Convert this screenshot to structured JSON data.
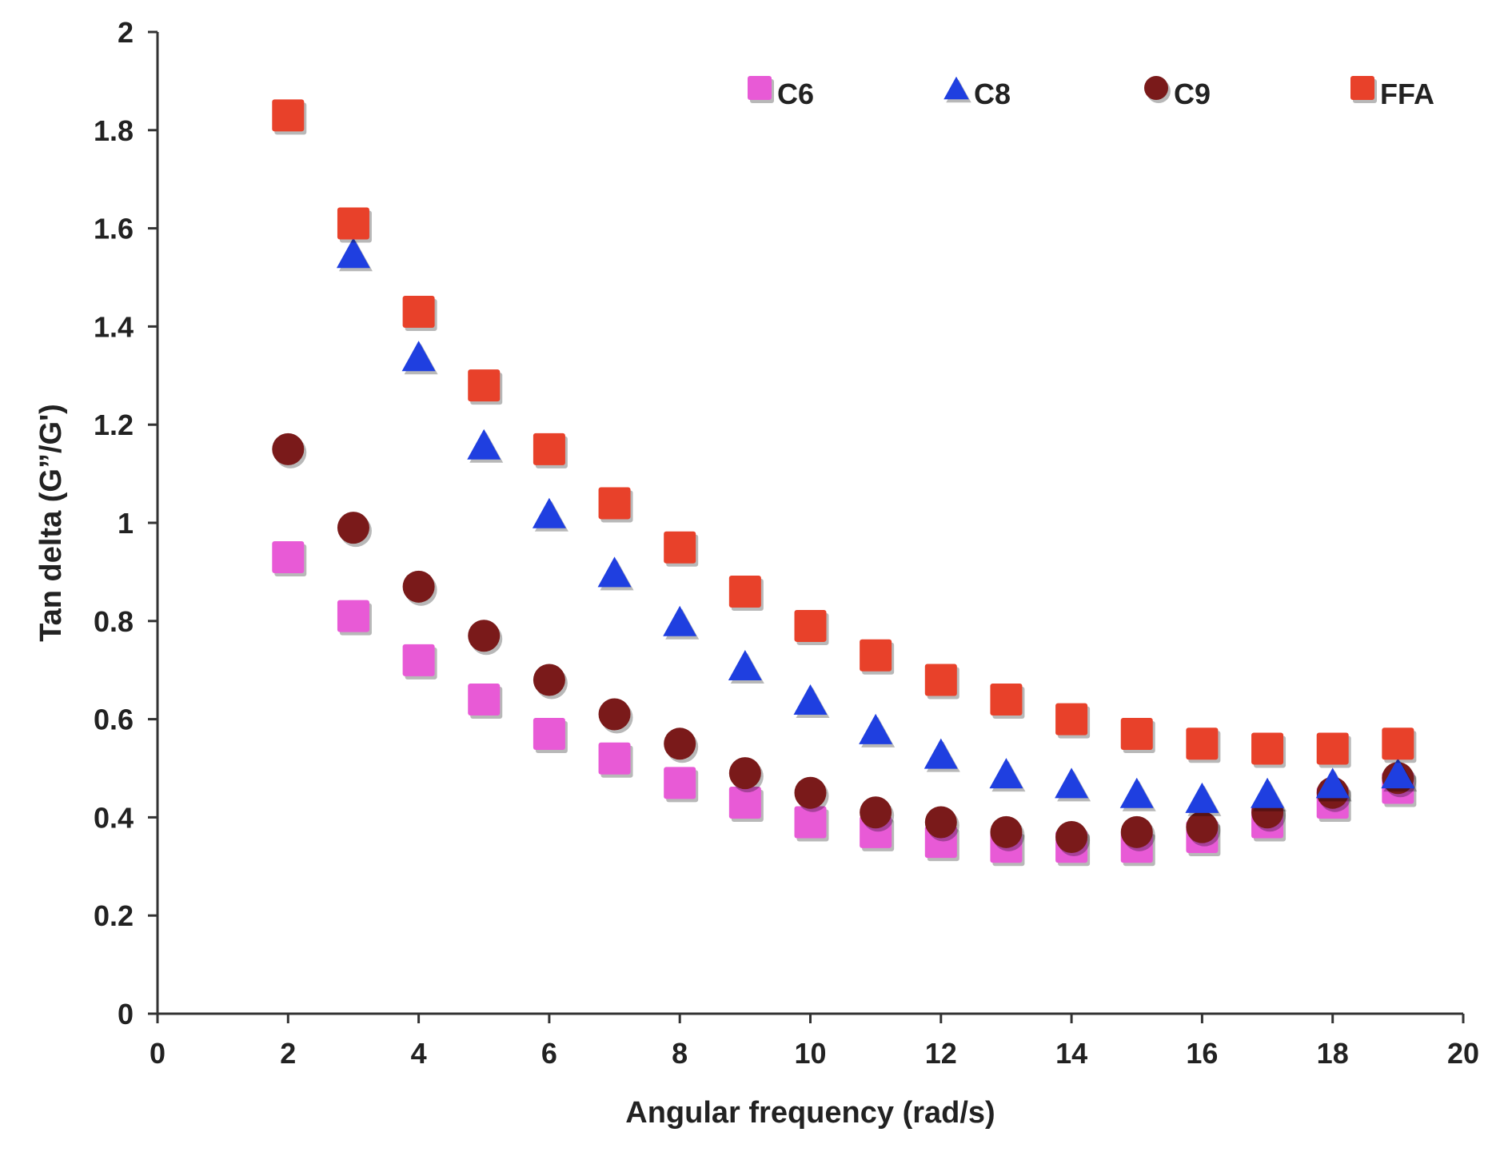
{
  "chart_data": {
    "type": "scatter",
    "title": "",
    "xlabel": "Angular frequency (rad/s)",
    "ylabel": "Tan delta (G”/G')",
    "xlim": [
      0,
      20
    ],
    "ylim": [
      0,
      2
    ],
    "xticks": [
      "0",
      "2",
      "4",
      "6",
      "8",
      "10",
      "12",
      "14",
      "16",
      "18",
      "20"
    ],
    "yticks": [
      "0",
      "0.2",
      "0.4",
      "0.6",
      "0.8",
      "1",
      "1.2",
      "1.4",
      "1.6",
      "1.8",
      "2"
    ],
    "grid": false,
    "legend_position": "top",
    "x": [
      2,
      3,
      4,
      5,
      6,
      7,
      8,
      9,
      10,
      11,
      12,
      13,
      14,
      15,
      16,
      17,
      18,
      19
    ],
    "series": [
      {
        "name": "C6",
        "marker": "square",
        "color": "#e85ad6",
        "values": [
          0.93,
          0.81,
          0.72,
          0.64,
          0.57,
          0.52,
          0.47,
          0.43,
          0.39,
          0.37,
          0.35,
          0.34,
          0.34,
          0.34,
          0.36,
          0.39,
          0.43,
          0.46
        ]
      },
      {
        "name": "C8",
        "marker": "triangle",
        "color": "#1f3fe0",
        "values": [
          null,
          1.55,
          1.34,
          1.16,
          1.02,
          0.9,
          0.8,
          0.71,
          0.64,
          0.58,
          0.53,
          0.49,
          0.47,
          0.45,
          0.44,
          0.45,
          0.47,
          0.49
        ]
      },
      {
        "name": "C9",
        "marker": "circle",
        "color": "#7a1a1a",
        "values": [
          1.15,
          0.99,
          0.87,
          0.77,
          0.68,
          0.61,
          0.55,
          0.49,
          0.45,
          0.41,
          0.39,
          0.37,
          0.36,
          0.37,
          0.38,
          0.41,
          0.45,
          0.48
        ]
      },
      {
        "name": "FFA",
        "marker": "square",
        "color": "#e8412a",
        "values": [
          1.83,
          1.61,
          1.43,
          1.28,
          1.15,
          1.04,
          0.95,
          0.86,
          0.79,
          0.73,
          0.68,
          0.64,
          0.6,
          0.57,
          0.55,
          0.54,
          0.54,
          0.55
        ]
      }
    ]
  }
}
